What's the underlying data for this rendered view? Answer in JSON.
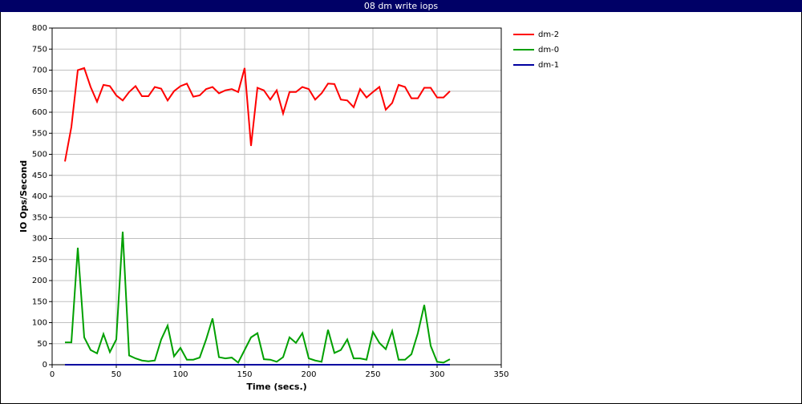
{
  "chart_data": {
    "type": "line",
    "title": "08 dm write iops",
    "x_label": "Time (secs.)",
    "y_label": "IO Ops/Second",
    "x": [
      10,
      15,
      20,
      25,
      30,
      35,
      40,
      45,
      50,
      55,
      60,
      65,
      70,
      75,
      80,
      85,
      90,
      95,
      100,
      105,
      110,
      115,
      120,
      125,
      130,
      135,
      140,
      145,
      150,
      155,
      160,
      165,
      170,
      175,
      180,
      185,
      190,
      195,
      200,
      205,
      210,
      215,
      220,
      225,
      230,
      235,
      240,
      245,
      250,
      255,
      260,
      265,
      270,
      275,
      280,
      285,
      290,
      295,
      300,
      305,
      310
    ],
    "series": [
      {
        "name": "dm-2",
        "color": "#ff0000",
        "values": [
          483,
          565,
          700,
          705,
          660,
          625,
          665,
          662,
          640,
          628,
          648,
          662,
          638,
          638,
          660,
          656,
          628,
          650,
          662,
          668,
          637,
          640,
          655,
          660,
          645,
          652,
          655,
          648,
          705,
          520,
          658,
          652,
          630,
          652,
          597,
          648,
          648,
          660,
          655,
          630,
          645,
          668,
          667,
          630,
          628,
          612,
          655,
          635,
          648,
          660,
          606,
          622,
          665,
          660,
          633,
          633,
          658,
          658,
          635,
          635,
          650
        ]
      },
      {
        "name": "dm-0",
        "color": "#00a000",
        "values": [
          53,
          53,
          278,
          65,
          35,
          27,
          73,
          30,
          60,
          316,
          22,
          15,
          10,
          8,
          10,
          60,
          93,
          20,
          40,
          12,
          12,
          17,
          60,
          110,
          18,
          15,
          17,
          5,
          35,
          65,
          75,
          13,
          12,
          7,
          18,
          65,
          52,
          75,
          15,
          10,
          7,
          83,
          28,
          35,
          60,
          15,
          15,
          12,
          78,
          52,
          37,
          80,
          12,
          12,
          25,
          75,
          142,
          45,
          7,
          5,
          13
        ]
      },
      {
        "name": "dm-1",
        "color": "#0000a0",
        "values": [
          0,
          0,
          0,
          0,
          0,
          0,
          0,
          0,
          0,
          0,
          0,
          0,
          0,
          0,
          0,
          0,
          0,
          0,
          0,
          0,
          0,
          0,
          0,
          0,
          0,
          0,
          0,
          0,
          0,
          0,
          0,
          0,
          0,
          0,
          0,
          0,
          0,
          0,
          0,
          0,
          0,
          0,
          0,
          0,
          0,
          0,
          0,
          0,
          0,
          0,
          0,
          0,
          0,
          0,
          0,
          0,
          0,
          0,
          0,
          0,
          0
        ]
      }
    ],
    "xlim": [
      0,
      350
    ],
    "xticks": [
      0,
      50,
      100,
      150,
      200,
      250,
      300,
      350
    ],
    "ylim": [
      0,
      800
    ],
    "yticks": [
      0,
      50,
      100,
      150,
      200,
      250,
      300,
      350,
      400,
      450,
      500,
      550,
      600,
      650,
      700,
      750,
      800
    ],
    "grid": true
  }
}
